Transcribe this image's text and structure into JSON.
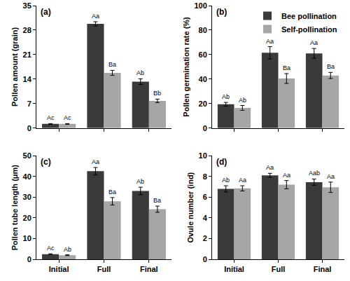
{
  "chart_data": [
    {
      "type": "bar",
      "title": "(a)",
      "y_label": "Pollen amount (grain)",
      "categories": [
        "Initial",
        "Full",
        "Final"
      ],
      "series": [
        {
          "name": "Bee pollination",
          "color": "#3a3a3a",
          "values": [
            1.2,
            29.8,
            13.3
          ],
          "errors": [
            0.1,
            0.6,
            0.8
          ],
          "annotations": [
            "Ac",
            "Aa",
            "Ab"
          ]
        },
        {
          "name": "Self-pollination",
          "color": "#a6a6a6",
          "values": [
            1.2,
            15.8,
            7.8
          ],
          "errors": [
            0.1,
            0.7,
            0.5
          ],
          "annotations": [
            "Ac",
            "Ba",
            "Bb"
          ]
        }
      ],
      "ylim": [
        0,
        35
      ],
      "yticks": [
        0,
        7,
        14,
        21,
        28,
        35
      ],
      "grid": false,
      "tick_labels": "y"
    },
    {
      "type": "bar",
      "title": "(b)",
      "y_label": "Pollen germination rate (%)",
      "categories": [
        "Initial",
        "Full",
        "Final"
      ],
      "series": [
        {
          "name": "Bee pollination",
          "color": "#3a3a3a",
          "values": [
            19.5,
            61.5,
            61
          ],
          "errors": [
            1.5,
            5,
            4
          ],
          "annotations": [
            "Ab",
            "Aa",
            "Aa"
          ]
        },
        {
          "name": "Self-pollination",
          "color": "#a6a6a6",
          "values": [
            16.5,
            40.5,
            43
          ],
          "errors": [
            2,
            4,
            2.5
          ],
          "annotations": [
            "Ab",
            "Ba",
            "Ba"
          ]
        }
      ],
      "ylim": [
        0,
        100
      ],
      "yticks": [
        0,
        20,
        40,
        60,
        80,
        100
      ],
      "grid": false,
      "tick_labels": "y",
      "legend": "top right"
    },
    {
      "type": "bar",
      "title": "(c)",
      "y_label": "Pollen tube length (μm)",
      "categories": [
        "Initial",
        "Full",
        "Final"
      ],
      "series": [
        {
          "name": "Bee pollination",
          "color": "#3a3a3a",
          "values": [
            2.5,
            42.5,
            33
          ],
          "errors": [
            0.2,
            1.8,
            1.8
          ],
          "annotations": [
            "Ac",
            "Aa",
            "Ab"
          ]
        },
        {
          "name": "Self-pollination",
          "color": "#a6a6a6",
          "values": [
            2.0,
            28,
            24.2
          ],
          "errors": [
            0.2,
            1.8,
            1.5
          ],
          "annotations": [
            "Ab",
            "Ba",
            "Ba"
          ]
        }
      ],
      "ylim": [
        0,
        50
      ],
      "yticks": [
        0,
        10,
        20,
        30,
        40,
        50
      ],
      "grid": false
    },
    {
      "type": "bar",
      "title": "(d)",
      "y_label": "Ovule number (ind)",
      "categories": [
        "Initial",
        "Full",
        "Final"
      ],
      "series": [
        {
          "name": "Bee pollination",
          "color": "#3a3a3a",
          "values": [
            6.8,
            8.1,
            7.45
          ],
          "errors": [
            0.3,
            0.2,
            0.3
          ],
          "annotations": [
            "Ab",
            "Aa",
            "Aab"
          ]
        },
        {
          "name": "Self-pollination",
          "color": "#a6a6a6",
          "values": [
            6.85,
            7.2,
            6.95
          ],
          "errors": [
            0.25,
            0.4,
            0.5
          ],
          "annotations": [
            "Aa",
            "Aa",
            "Aa"
          ]
        }
      ],
      "ylim": [
        0,
        10
      ],
      "yticks": [
        0,
        2,
        4,
        6,
        8,
        10
      ],
      "grid": false
    }
  ]
}
